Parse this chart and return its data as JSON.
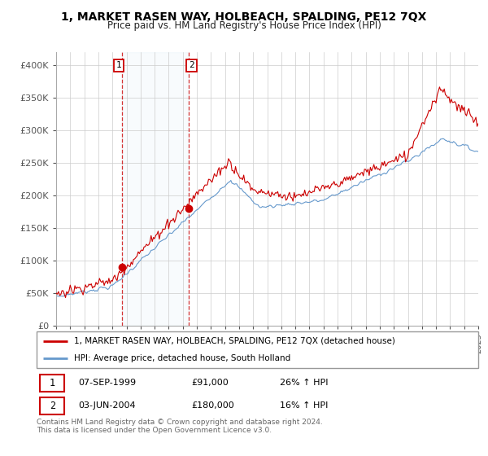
{
  "title": "1, MARKET RASEN WAY, HOLBEACH, SPALDING, PE12 7QX",
  "subtitle": "Price paid vs. HM Land Registry's House Price Index (HPI)",
  "ylabel_ticks": [
    "£0",
    "£50K",
    "£100K",
    "£150K",
    "£200K",
    "£250K",
    "£300K",
    "£350K",
    "£400K"
  ],
  "ytick_values": [
    0,
    50000,
    100000,
    150000,
    200000,
    250000,
    300000,
    350000,
    400000
  ],
  "ylim": [
    0,
    420000
  ],
  "red_color": "#cc0000",
  "blue_color": "#6699cc",
  "transaction1": {
    "label": "1",
    "date": "07-SEP-1999",
    "price": 91000,
    "hpi_change": "26% ↑ HPI",
    "year": 1999.67
  },
  "transaction2": {
    "label": "2",
    "date": "03-JUN-2004",
    "price": 180000,
    "hpi_change": "16% ↑ HPI",
    "year": 2004.42
  },
  "legend_line1": "1, MARKET RASEN WAY, HOLBEACH, SPALDING, PE12 7QX (detached house)",
  "legend_line2": "HPI: Average price, detached house, South Holland",
  "footnote": "Contains HM Land Registry data © Crown copyright and database right 2024.\nThis data is licensed under the Open Government Licence v3.0.",
  "xmin": 1995,
  "xmax": 2025
}
